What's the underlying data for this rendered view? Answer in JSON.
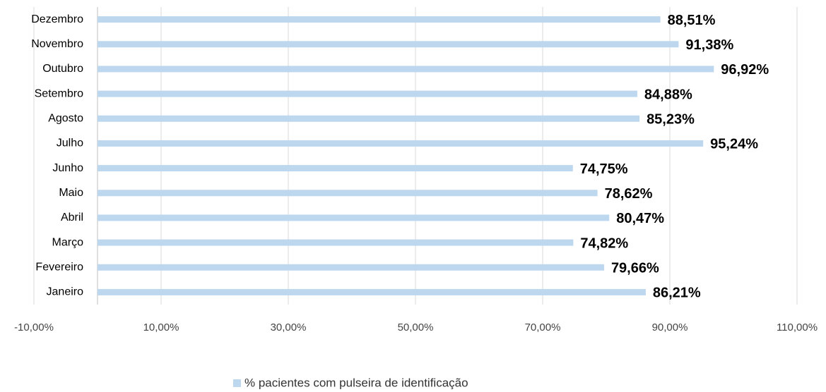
{
  "chart_data": {
    "type": "barh",
    "categories": [
      "Janeiro",
      "Fevereiro",
      "Março",
      "Abril",
      "Maio",
      "Junho",
      "Julho",
      "Agosto",
      "Setembro",
      "Outubro",
      "Novembro",
      "Dezembro"
    ],
    "series": [
      {
        "name": "% pacientes com pulseira de identificação",
        "color": "#bdd7ee",
        "values": [
          86.21,
          79.66,
          74.82,
          80.47,
          78.62,
          74.75,
          95.24,
          85.23,
          84.88,
          96.92,
          91.38,
          88.51
        ],
        "value_labels": [
          "86,21%",
          "79,66%",
          "74,82%",
          "80,47%",
          "78,62%",
          "74,75%",
          "95,24%",
          "85,23%",
          "84,88%",
          "96,92%",
          "91,38%",
          "88,51%"
        ]
      }
    ],
    "xlim": [
      -10,
      110
    ],
    "xticks": [
      {
        "value": -10,
        "label": "-10,00%"
      },
      {
        "value": 10,
        "label": "10,00%"
      },
      {
        "value": 30,
        "label": "30,00%"
      },
      {
        "value": 50,
        "label": "50,00%"
      },
      {
        "value": 70,
        "label": "70,00%"
      },
      {
        "value": 90,
        "label": "90,00%"
      },
      {
        "value": 110,
        "label": "110,00%"
      }
    ],
    "grid": true,
    "legend": "bottom"
  }
}
